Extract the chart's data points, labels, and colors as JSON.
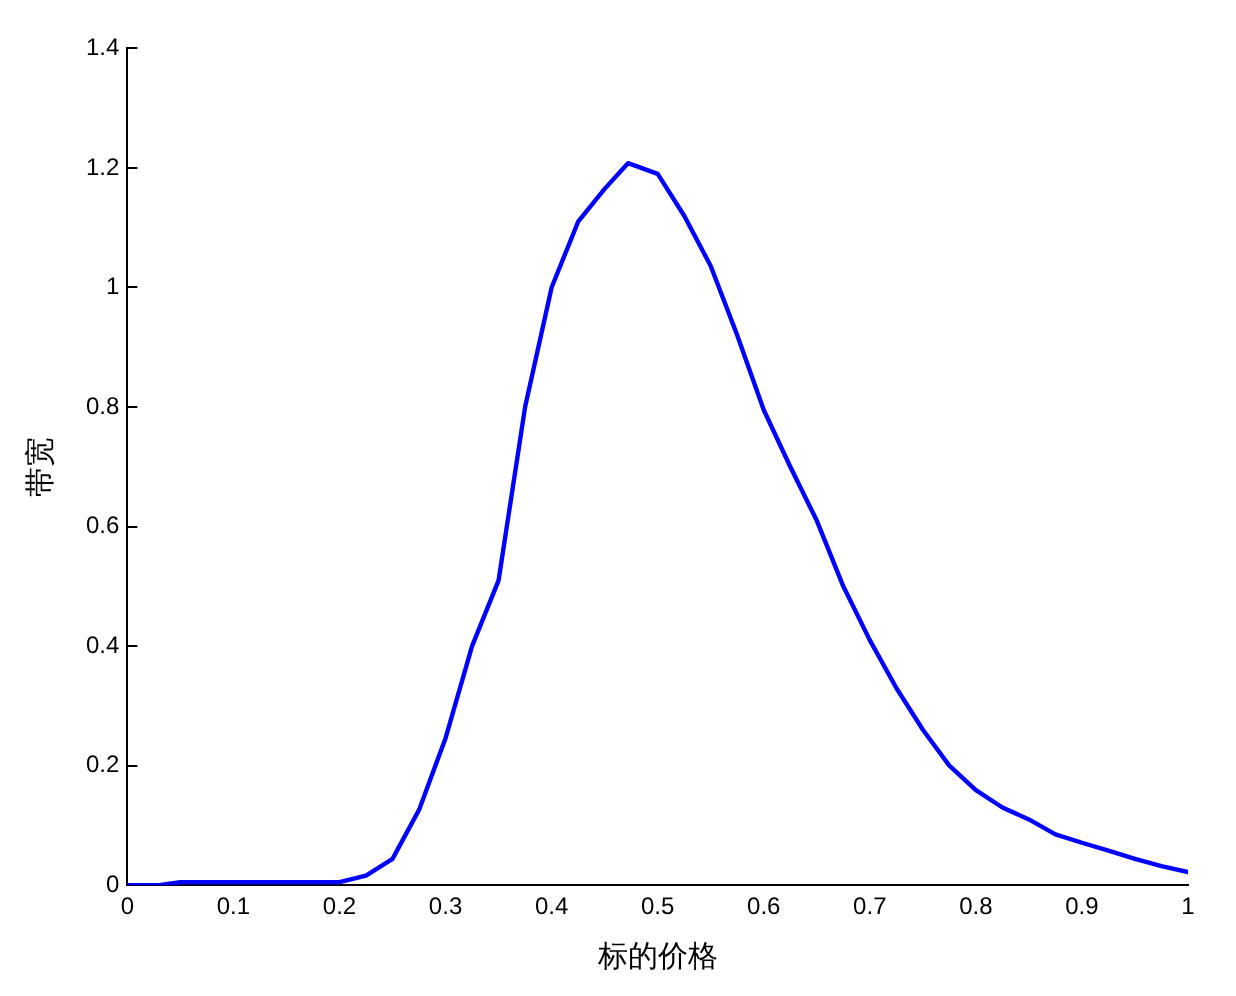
{
  "chart_data": {
    "type": "line",
    "xlabel": "标的价格",
    "ylabel": "带宽",
    "x": [
      0,
      0.03,
      0.05,
      0.1,
      0.15,
      0.2,
      0.225,
      0.25,
      0.275,
      0.3,
      0.325,
      0.35,
      0.375,
      0.4,
      0.425,
      0.45,
      0.472,
      0.5,
      0.525,
      0.55,
      0.575,
      0.6,
      0.625,
      0.65,
      0.675,
      0.7,
      0.725,
      0.75,
      0.775,
      0.8,
      0.825,
      0.85,
      0.875,
      0.9,
      0.925,
      0.95,
      0.975,
      1
    ],
    "series": [
      {
        "color": "#0000ff",
        "values": [
          0,
          0,
          0.005,
          0.005,
          0.005,
          0.005,
          0.016,
          0.044,
          0.126,
          0.246,
          0.4,
          0.51,
          0.8,
          1.0,
          1.11,
          1.165,
          1.208,
          1.19,
          1.12,
          1.036,
          0.92,
          0.795,
          0.7,
          0.61,
          0.5,
          0.41,
          0.33,
          0.26,
          0.2,
          0.159,
          0.13,
          0.11,
          0.085,
          0.071,
          0.058,
          0.044,
          0.032,
          0.022
        ]
      }
    ],
    "xlim": [
      0,
      1
    ],
    "xticks": [
      0,
      0.1,
      0.2,
      0.3,
      0.4,
      0.5,
      0.6,
      0.7,
      0.8,
      0.9,
      1
    ],
    "ylim": [
      0,
      1.4
    ],
    "yticks": [
      0,
      0.2,
      0.4,
      0.6,
      0.8,
      1,
      1.2,
      1.4
    ],
    "grid": false,
    "legend": false,
    "marker": "none",
    "line_style": "solid"
  }
}
